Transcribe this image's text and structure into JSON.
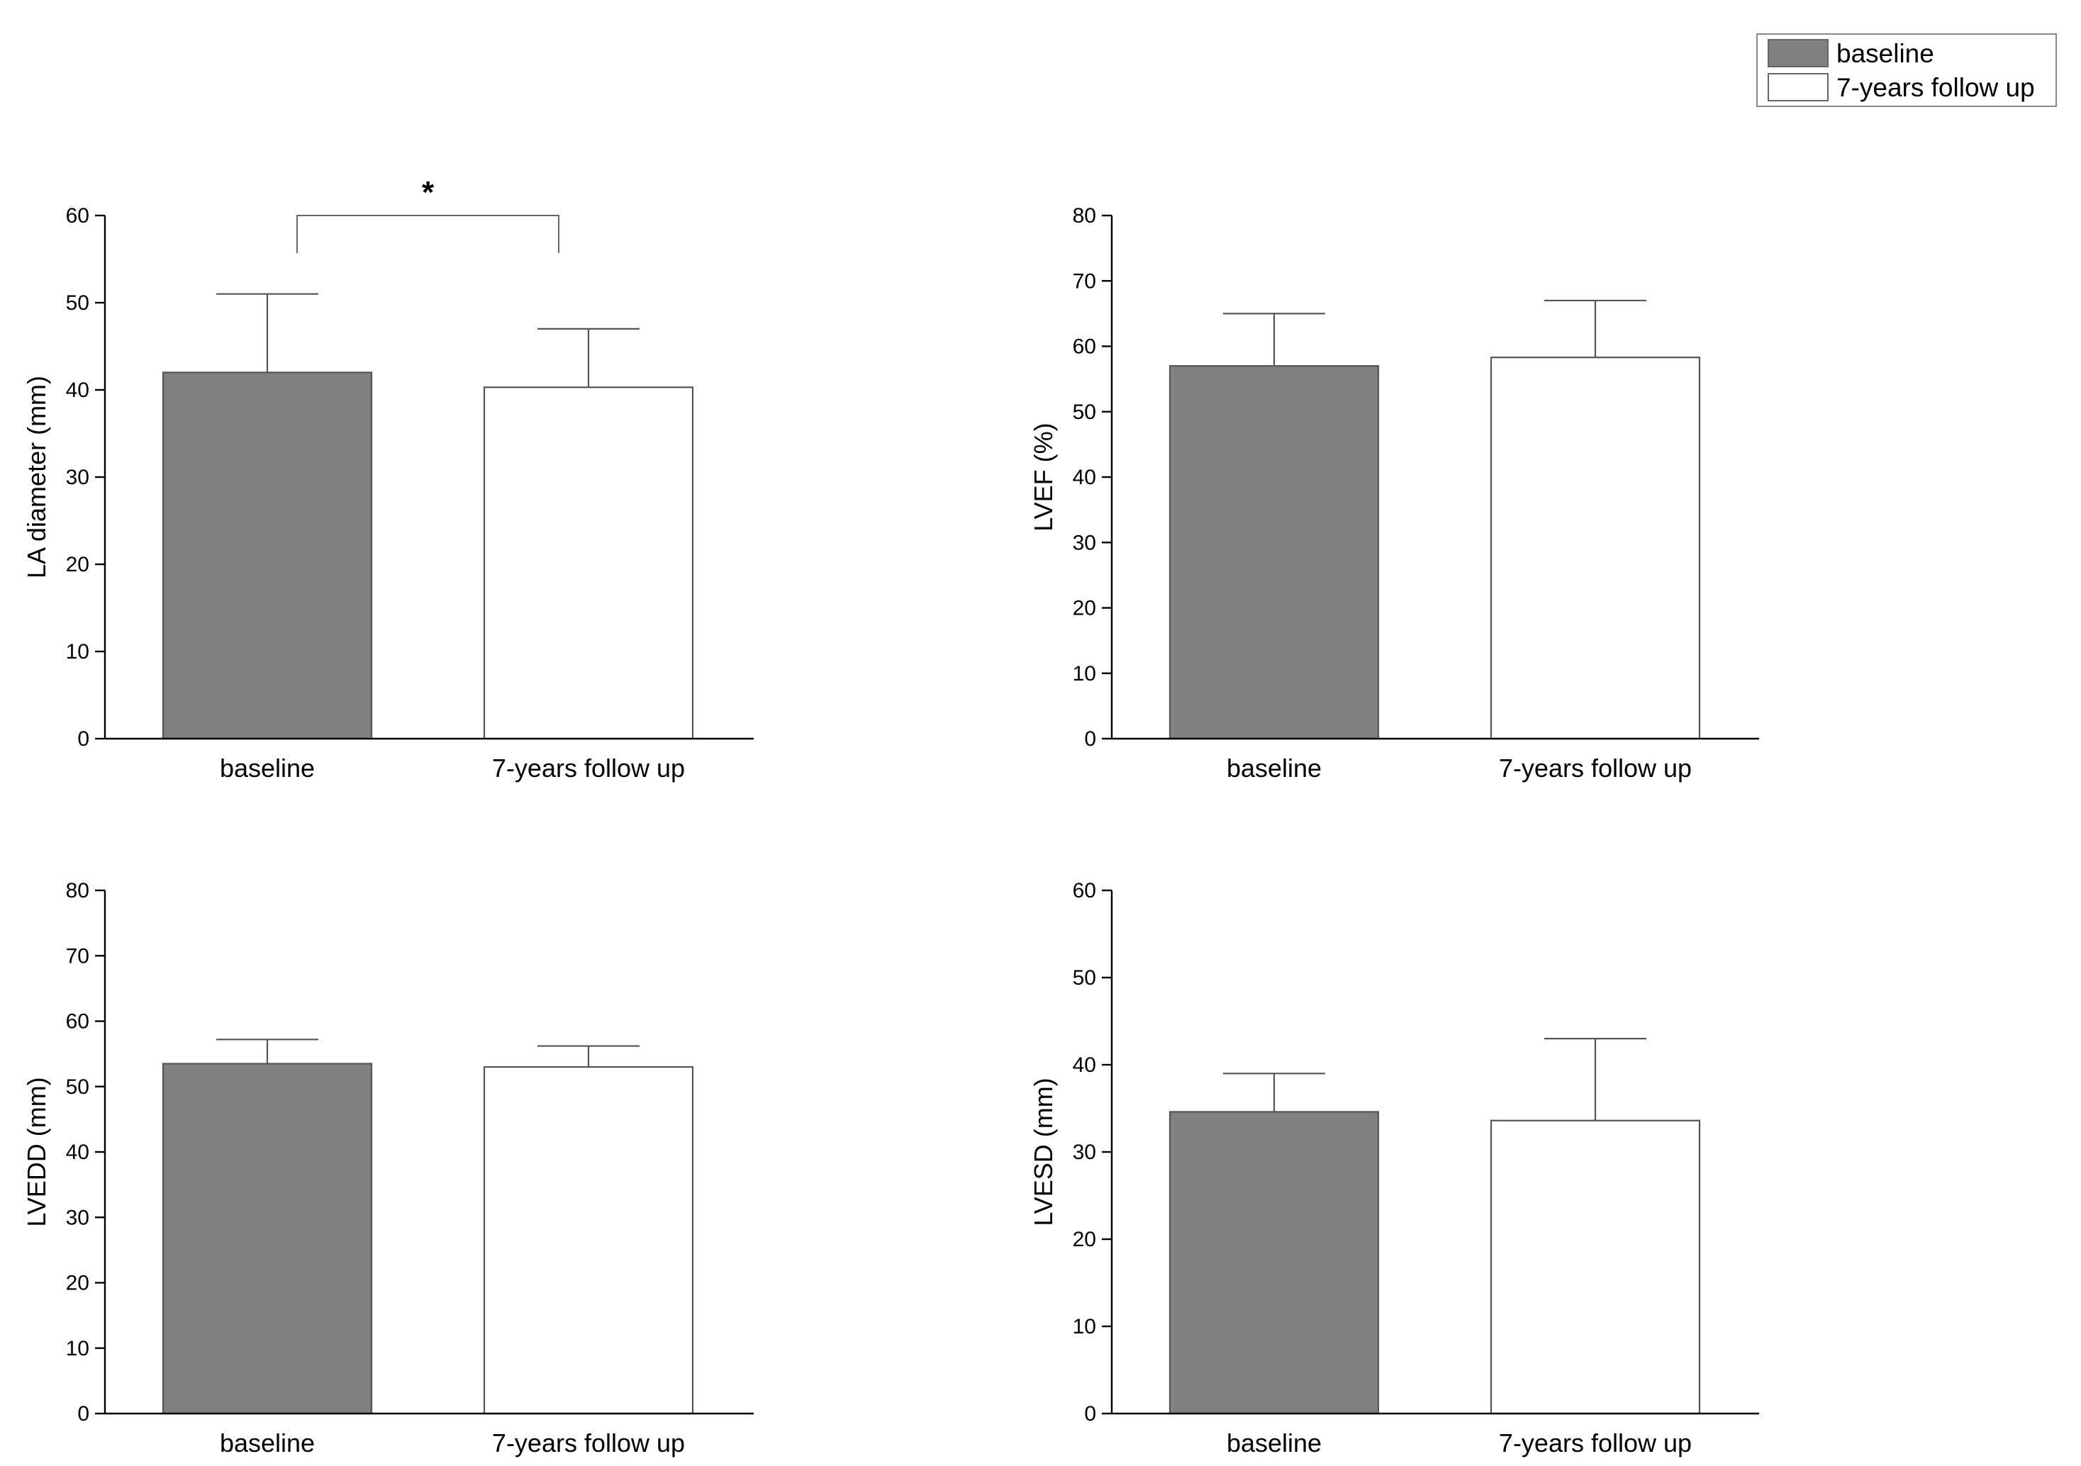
{
  "legend": {
    "placement": "top-right",
    "items": [
      {
        "label": "baseline",
        "color": "#808080"
      },
      {
        "label": "7-years follow up",
        "color": "#ffffff"
      }
    ]
  },
  "chart_data": [
    {
      "type": "bar",
      "ylabel": "LA diameter (mm)",
      "ylim": [
        0,
        60
      ],
      "yticks": [
        0,
        10,
        20,
        30,
        40,
        50,
        60
      ],
      "categories": [
        "baseline",
        "7-years follow up"
      ],
      "values": [
        42,
        40.3
      ],
      "error_upper": [
        51,
        47
      ],
      "colors": [
        "#808080",
        "#ffffff"
      ],
      "significance": {
        "between": [
          0,
          1
        ],
        "label": "*",
        "level": 60
      }
    },
    {
      "type": "bar",
      "ylabel": "LVEF (%)",
      "ylim": [
        0,
        80
      ],
      "yticks": [
        0,
        10,
        20,
        30,
        40,
        50,
        60,
        70,
        80
      ],
      "categories": [
        "baseline",
        "7-years follow up"
      ],
      "values": [
        57,
        58.3
      ],
      "error_upper": [
        65,
        67
      ],
      "colors": [
        "#808080",
        "#ffffff"
      ]
    },
    {
      "type": "bar",
      "ylabel": "LVEDD (mm)",
      "ylim": [
        0,
        80
      ],
      "yticks": [
        0,
        10,
        20,
        30,
        40,
        50,
        60,
        70,
        80
      ],
      "categories": [
        "baseline",
        "7-years follow up"
      ],
      "values": [
        53.5,
        53
      ],
      "error_upper": [
        57.2,
        56.2
      ],
      "colors": [
        "#808080",
        "#ffffff"
      ]
    },
    {
      "type": "bar",
      "ylabel": "LVESD (mm)",
      "ylim": [
        0,
        60
      ],
      "yticks": [
        0,
        10,
        20,
        30,
        40,
        50,
        60
      ],
      "categories": [
        "baseline",
        "7-years follow up"
      ],
      "values": [
        34.6,
        33.6
      ],
      "error_upper": [
        39,
        43
      ],
      "colors": [
        "#808080",
        "#ffffff"
      ]
    }
  ]
}
